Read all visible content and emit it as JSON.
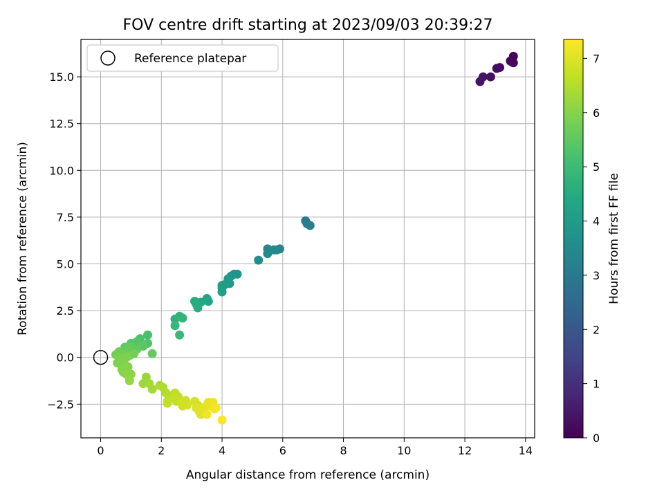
{
  "chart_data": {
    "type": "scatter",
    "title": "FOV centre drift starting at 2023/09/03 20:39:27",
    "xlabel": "Angular distance from reference (arcmin)",
    "ylabel": "Rotation from reference (arcmin)",
    "xlim": [
      -0.65,
      14.3
    ],
    "ylim": [
      -4.3,
      17.0
    ],
    "x_ticks": [
      "0",
      "2",
      "4",
      "6",
      "8",
      "10",
      "12",
      "14"
    ],
    "y_ticks": [
      "−2.5",
      "0.0",
      "2.5",
      "5.0",
      "7.5",
      "10.0",
      "12.5",
      "15.0"
    ],
    "grid": true,
    "legend": {
      "placement": "top-left",
      "entries": [
        "Reference platepar"
      ]
    },
    "reference_point": {
      "x": 0,
      "y": 0,
      "marker": "open-circle"
    },
    "colorbar": {
      "label": "Hours from first FF file",
      "range": [
        0,
        7.35
      ],
      "ticks": [
        "0",
        "1",
        "2",
        "3",
        "4",
        "5",
        "6",
        "7"
      ],
      "colormap": "viridis"
    },
    "points": [
      [
        13.6,
        16.1,
        0.05
      ],
      [
        13.55,
        15.8,
        0.1
      ],
      [
        13.6,
        15.75,
        0.12
      ],
      [
        13.5,
        15.85,
        0.15
      ],
      [
        13.15,
        15.5,
        0.2
      ],
      [
        13.05,
        15.45,
        0.25
      ],
      [
        12.85,
        15.0,
        0.3
      ],
      [
        12.6,
        15.0,
        0.35
      ],
      [
        12.5,
        14.75,
        0.4
      ],
      [
        6.75,
        7.3,
        3.0
      ],
      [
        6.8,
        7.15,
        3.05
      ],
      [
        6.9,
        7.05,
        3.1
      ],
      [
        5.9,
        5.8,
        3.3
      ],
      [
        5.8,
        5.75,
        3.35
      ],
      [
        5.7,
        5.75,
        3.4
      ],
      [
        5.5,
        5.8,
        3.45
      ],
      [
        5.5,
        5.55,
        3.5
      ],
      [
        5.2,
        5.2,
        3.55
      ],
      [
        4.5,
        4.45,
        3.75
      ],
      [
        4.4,
        4.45,
        3.8
      ],
      [
        4.3,
        4.35,
        3.85
      ],
      [
        4.2,
        4.2,
        3.9
      ],
      [
        4.25,
        3.95,
        3.95
      ],
      [
        4.1,
        3.9,
        4.0
      ],
      [
        4.0,
        3.85,
        4.05
      ],
      [
        4.0,
        3.7,
        4.1
      ],
      [
        4.0,
        3.5,
        4.15
      ],
      [
        3.5,
        3.15,
        4.3
      ],
      [
        3.55,
        3.0,
        4.35
      ],
      [
        3.3,
        2.95,
        4.4
      ],
      [
        3.1,
        3.0,
        4.45
      ],
      [
        3.15,
        2.85,
        4.5
      ],
      [
        3.2,
        2.65,
        4.55
      ],
      [
        2.45,
        2.05,
        4.7
      ],
      [
        2.6,
        2.2,
        4.75
      ],
      [
        2.7,
        2.1,
        4.8
      ],
      [
        2.45,
        1.7,
        4.85
      ],
      [
        2.6,
        1.2,
        4.9
      ],
      [
        1.55,
        1.2,
        5.2
      ],
      [
        1.3,
        1.0,
        5.25
      ],
      [
        1.55,
        0.75,
        5.3
      ],
      [
        1.2,
        0.85,
        5.35
      ],
      [
        1.0,
        0.75,
        5.4
      ],
      [
        1.4,
        0.6,
        5.45
      ],
      [
        0.8,
        0.55,
        5.5
      ],
      [
        1.0,
        0.55,
        5.55
      ],
      [
        1.2,
        0.45,
        5.55
      ],
      [
        1.7,
        0.2,
        5.6
      ],
      [
        0.8,
        0.3,
        5.6
      ],
      [
        0.9,
        0.4,
        5.65
      ],
      [
        0.6,
        0.3,
        5.7
      ],
      [
        0.5,
        0.15,
        5.75
      ],
      [
        0.75,
        0.15,
        5.75
      ],
      [
        0.95,
        0.1,
        5.8
      ],
      [
        1.1,
        0.2,
        5.8
      ],
      [
        0.6,
        0.0,
        5.85
      ],
      [
        0.75,
        -0.05,
        5.85
      ],
      [
        0.85,
        0.0,
        5.9
      ],
      [
        0.65,
        -0.2,
        5.9
      ],
      [
        0.55,
        -0.3,
        5.9
      ],
      [
        0.7,
        -0.3,
        5.95
      ],
      [
        0.8,
        -0.4,
        5.95
      ],
      [
        0.9,
        -0.5,
        6.0
      ],
      [
        0.7,
        -0.65,
        6.0
      ],
      [
        0.75,
        -0.8,
        6.0
      ],
      [
        0.85,
        -0.9,
        6.05
      ],
      [
        1.0,
        -0.9,
        6.1
      ],
      [
        0.95,
        -1.05,
        6.1
      ],
      [
        0.95,
        -1.25,
        6.15
      ],
      [
        1.5,
        -1.05,
        6.2
      ],
      [
        1.4,
        -1.4,
        6.25
      ],
      [
        1.6,
        -1.4,
        6.3
      ],
      [
        1.7,
        -1.7,
        6.35
      ],
      [
        1.95,
        -1.5,
        6.4
      ],
      [
        2.05,
        -1.6,
        6.45
      ],
      [
        2.15,
        -1.9,
        6.5
      ],
      [
        2.25,
        -2.05,
        6.55
      ],
      [
        2.45,
        -1.9,
        6.6
      ],
      [
        2.2,
        -2.35,
        6.6
      ],
      [
        2.4,
        -2.2,
        6.65
      ],
      [
        2.55,
        -2.1,
        6.65
      ],
      [
        2.2,
        -2.45,
        6.7
      ],
      [
        2.5,
        -2.35,
        6.7
      ],
      [
        2.65,
        -2.35,
        6.75
      ],
      [
        2.8,
        -2.3,
        6.8
      ],
      [
        2.7,
        -2.45,
        6.8
      ],
      [
        2.7,
        -2.6,
        6.85
      ],
      [
        2.85,
        -2.55,
        6.85
      ],
      [
        3.1,
        -2.35,
        6.9
      ],
      [
        3.2,
        -2.55,
        6.9
      ],
      [
        3.15,
        -2.7,
        6.95
      ],
      [
        3.25,
        -2.9,
        7.0
      ],
      [
        3.3,
        -3.05,
        7.0
      ],
      [
        3.45,
        -2.65,
        7.05
      ],
      [
        3.55,
        -2.4,
        7.1
      ],
      [
        3.6,
        -2.6,
        7.1
      ],
      [
        3.7,
        -2.4,
        7.15
      ],
      [
        3.75,
        -2.75,
        7.2
      ],
      [
        3.5,
        -3.05,
        7.2
      ],
      [
        3.8,
        -2.7,
        7.25
      ],
      [
        4.0,
        -3.35,
        7.3
      ]
    ]
  }
}
